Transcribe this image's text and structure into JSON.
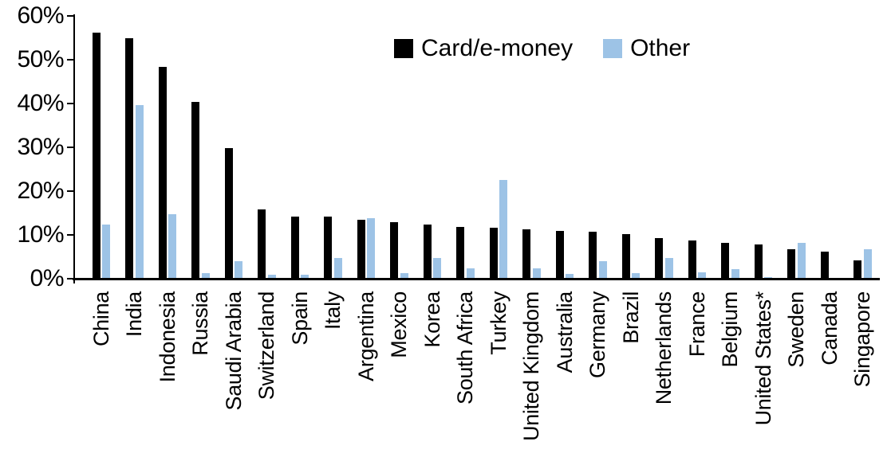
{
  "chart_data": {
    "type": "bar",
    "categories": [
      "China",
      "India",
      "Indonesia",
      "Russia",
      "Saudi Arabia",
      "Switzerland",
      "Spain",
      "Italy",
      "Argentina",
      "Mexico",
      "Korea",
      "South Africa",
      "Turkey",
      "United Kingdom",
      "Australia",
      "Germany",
      "Brazil",
      "Netherlands",
      "France",
      "Belgium",
      "United States*",
      "Sweden",
      "Canada",
      "Singapore"
    ],
    "series": [
      {
        "name": "Card/e-money",
        "color": "#000000",
        "values": [
          56.2,
          55.0,
          48.3,
          40.4,
          29.9,
          15.8,
          14.1,
          14.1,
          13.5,
          13.0,
          12.4,
          11.8,
          11.7,
          11.2,
          11.0,
          10.8,
          10.1,
          9.3,
          8.7,
          8.2,
          7.9,
          6.8,
          6.2,
          4.1
        ]
      },
      {
        "name": "Other",
        "color": "#9DC3E6",
        "values": [
          12.4,
          39.6,
          14.7,
          1.2,
          4.0,
          1.0,
          1.0,
          4.7,
          13.9,
          1.3,
          4.7,
          2.4,
          22.6,
          2.4,
          1.1,
          4.0,
          1.2,
          4.8,
          1.5,
          2.1,
          0.3,
          8.1,
          0,
          6.8
        ]
      }
    ],
    "ylim": [
      0,
      60
    ],
    "ytick_step": 10,
    "ytick_labels": [
      "0%",
      "10%",
      "20%",
      "30%",
      "40%",
      "50%",
      "60%"
    ],
    "grid": false,
    "legend_position": "top-center",
    "bar_value_unit": "%"
  }
}
